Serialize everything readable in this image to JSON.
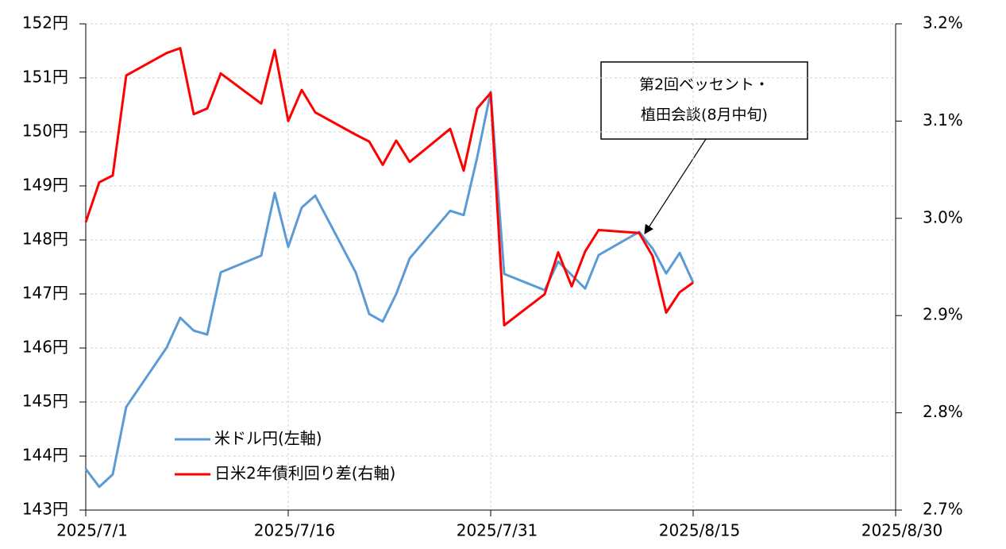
{
  "chart_data": {
    "type": "line",
    "x": [
      "2025-07-01",
      "2025-07-02",
      "2025-07-03",
      "2025-07-04",
      "2025-07-07",
      "2025-07-08",
      "2025-07-09",
      "2025-07-10",
      "2025-07-11",
      "2025-07-14",
      "2025-07-15",
      "2025-07-16",
      "2025-07-17",
      "2025-07-18",
      "2025-07-21",
      "2025-07-22",
      "2025-07-23",
      "2025-07-24",
      "2025-07-25",
      "2025-07-28",
      "2025-07-29",
      "2025-07-30",
      "2025-07-31",
      "2025-08-01",
      "2025-08-04",
      "2025-08-05",
      "2025-08-06",
      "2025-08-07",
      "2025-08-08",
      "2025-08-11",
      "2025-08-12",
      "2025-08-13",
      "2025-08-14",
      "2025-08-15"
    ],
    "series": [
      {
        "name": "米ドル円(左軸)",
        "color": "#5b9bd5",
        "axis": "y",
        "values": [
          143.76,
          143.43,
          143.66,
          144.91,
          146.01,
          146.56,
          146.32,
          146.25,
          147.4,
          147.71,
          148.87,
          147.87,
          148.6,
          148.82,
          147.4,
          146.63,
          146.49,
          147.0,
          147.66,
          148.54,
          148.46,
          149.53,
          150.74,
          147.37,
          147.07,
          147.6,
          147.35,
          147.1,
          147.72,
          148.15,
          147.84,
          147.38,
          147.76,
          147.21
        ]
      },
      {
        "name": "日米2年債利回り差(右軸)",
        "color": "#ff0000",
        "axis": "y2",
        "values": [
          2.996,
          3.037,
          3.044,
          3.147,
          3.17,
          3.175,
          3.107,
          3.113,
          3.149,
          3.118,
          3.173,
          3.1,
          3.132,
          3.109,
          3.086,
          3.079,
          3.055,
          3.08,
          3.058,
          3.092,
          3.049,
          3.113,
          3.129,
          2.89,
          2.922,
          2.965,
          2.93,
          2.966,
          2.988,
          2.985,
          2.961,
          2.903,
          2.924,
          2.934
        ]
      }
    ],
    "xlim": [
      "2025-07-01",
      "2025-08-30"
    ],
    "xticks": [
      {
        "value": "2025-07-01",
        "label": "2025/7/1"
      },
      {
        "value": "2025-07-16",
        "label": "2025/7/16"
      },
      {
        "value": "2025-07-31",
        "label": "2025/7/31"
      },
      {
        "value": "2025-08-15",
        "label": "2025/8/15"
      },
      {
        "value": "2025-08-30",
        "label": "2025/8/30"
      }
    ],
    "ylim": [
      143,
      152
    ],
    "yticks": [
      {
        "value": 143,
        "label": "143円"
      },
      {
        "value": 144,
        "label": "144円"
      },
      {
        "value": 145,
        "label": "145円"
      },
      {
        "value": 146,
        "label": "146円"
      },
      {
        "value": 147,
        "label": "147円"
      },
      {
        "value": 148,
        "label": "148円"
      },
      {
        "value": 149,
        "label": "149円"
      },
      {
        "value": 150,
        "label": "150円"
      },
      {
        "value": 151,
        "label": "151円"
      },
      {
        "value": 152,
        "label": "152円"
      }
    ],
    "y2lim": [
      2.7,
      3.2
    ],
    "y2ticks": [
      {
        "value": 2.7,
        "label": "2.7%"
      },
      {
        "value": 2.8,
        "label": "2.8%"
      },
      {
        "value": 2.9,
        "label": "2.9%"
      },
      {
        "value": 3.0,
        "label": "3.0%"
      },
      {
        "value": 3.1,
        "label": "3.1%"
      },
      {
        "value": 3.2,
        "label": "3.2%"
      }
    ],
    "grid": true,
    "legend": "lower-left",
    "annotation": [
      "第2回ベッセント・",
      "植田会談(8月中旬)"
    ]
  }
}
